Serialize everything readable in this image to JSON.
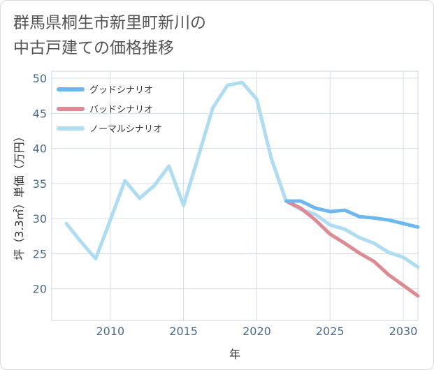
{
  "title": {
    "line1": "群馬県桐生市新里町新川の",
    "line2": "中古戸建ての価格推移"
  },
  "chart_data": {
    "type": "line",
    "xlabel": "年",
    "ylabel": "坪（3.3㎡）単価（万円）",
    "xlim": [
      2006,
      2031
    ],
    "ylim": [
      15.5,
      51
    ],
    "xticks": [
      2010,
      2015,
      2020,
      2025,
      2030
    ],
    "yticks": [
      20,
      25,
      30,
      35,
      40,
      45,
      50
    ],
    "grid": true,
    "legend_position": "top-left",
    "series": [
      {
        "name": "グッドシナリオ",
        "color": "#6cb8ee",
        "x": [
          2022,
          2023,
          2024,
          2025,
          2026,
          2027,
          2028,
          2029,
          2030,
          2031
        ],
        "values": [
          32.5,
          32.5,
          31.5,
          31.0,
          31.2,
          30.3,
          30.1,
          29.8,
          29.3,
          28.8
        ]
      },
      {
        "name": "バッドシナリオ",
        "color": "#dd8a93",
        "x": [
          2022,
          2023,
          2024,
          2025,
          2026,
          2027,
          2028,
          2029,
          2030,
          2031
        ],
        "values": [
          32.5,
          31.5,
          29.8,
          27.8,
          26.5,
          25.1,
          23.9,
          22.0,
          20.5,
          19.0
        ]
      },
      {
        "name": "ノーマルシナリオ",
        "color": "#aedcf0",
        "x": [
          2007,
          2008,
          2009,
          2010,
          2011,
          2012,
          2013,
          2014,
          2015,
          2016,
          2017,
          2018,
          2019,
          2020,
          2021,
          2022,
          2023,
          2024,
          2025,
          2026,
          2027,
          2028,
          2029,
          2030,
          2031
        ],
        "values": [
          29.3,
          26.7,
          24.3,
          29.8,
          35.4,
          32.9,
          34.7,
          37.5,
          31.9,
          38.8,
          45.8,
          49.0,
          49.4,
          47.0,
          38.5,
          32.5,
          31.3,
          30.6,
          29.1,
          28.5,
          27.3,
          26.5,
          25.2,
          24.5,
          23.1
        ]
      }
    ]
  }
}
